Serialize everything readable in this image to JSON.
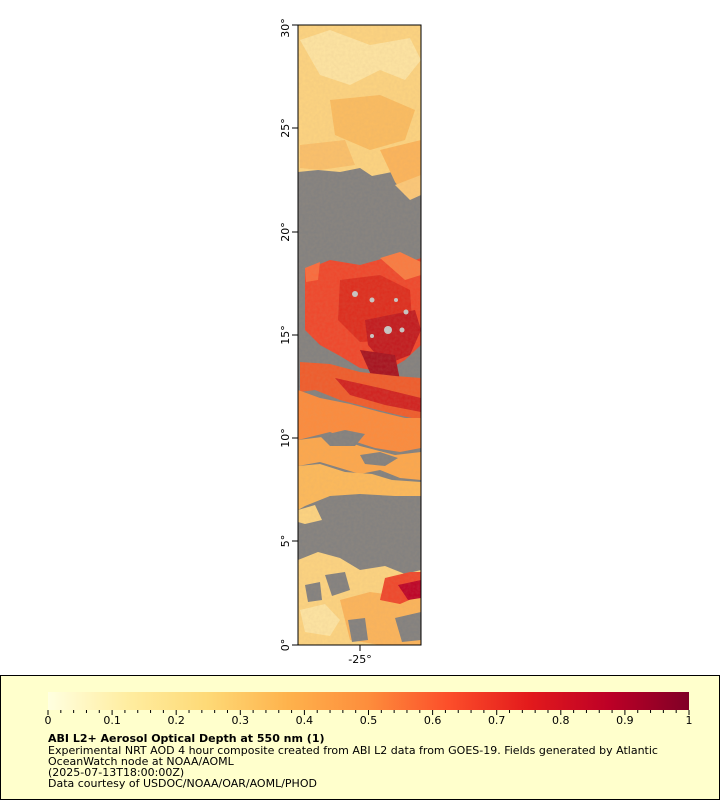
{
  "map": {
    "lat_ticks": [
      "0°",
      "5°",
      "10°",
      "15°",
      "20°",
      "25°",
      "30°"
    ],
    "lon_ticks": [
      "-25°"
    ],
    "colors": {
      "no_data": "#808080",
      "cloud": "#c8c8c8",
      "frame": "#000000"
    }
  },
  "legend": {
    "ticks": [
      "0",
      "0.1",
      "0.2",
      "0.3",
      "0.4",
      "0.5",
      "0.6",
      "0.7",
      "0.8",
      "0.9",
      "1"
    ],
    "title": "ABI L2+ Aerosol Optical Depth at 550 nm (1)",
    "line1": "Experimental NRT AOD 4 hour composite created from ABI L2 data from GOES-19. Fields generated by Atlantic",
    "line2": "OceanWatch node at NOAA/AOML",
    "line3": "(2025-07-13T18:00:00Z)",
    "line4": "Data courtesy of USDOC/NOAA/OAR/AOML/PHOD",
    "colorbar_colors": [
      "#ffffe0",
      "#ffeda0",
      "#fed976",
      "#feb24c",
      "#fd8d3c",
      "#fc4e2a",
      "#e31a1c",
      "#bd0026",
      "#800026"
    ]
  }
}
